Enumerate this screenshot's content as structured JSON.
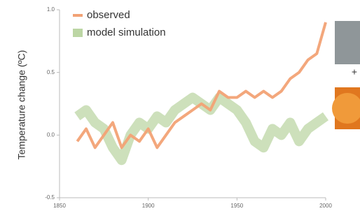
{
  "chart_data": {
    "type": "line",
    "ylabel": "Temperature change (ºC)",
    "x": [
      1860,
      1865,
      1870,
      1875,
      1880,
      1885,
      1890,
      1895,
      1900,
      1905,
      1910,
      1915,
      1920,
      1925,
      1930,
      1935,
      1940,
      1945,
      1950,
      1955,
      1960,
      1965,
      1970,
      1975,
      1980,
      1985,
      1990,
      1995,
      2000
    ],
    "series": [
      {
        "name": "observed",
        "color": "#f2a275",
        "values": [
          -0.05,
          0.05,
          -0.1,
          0.0,
          0.1,
          -0.1,
          0.0,
          -0.05,
          0.05,
          -0.1,
          0.0,
          0.1,
          0.15,
          0.2,
          0.25,
          0.2,
          0.35,
          0.3,
          0.3,
          0.35,
          0.3,
          0.35,
          0.3,
          0.35,
          0.45,
          0.5,
          0.6,
          0.65,
          0.9
        ]
      },
      {
        "name": "model simulation",
        "color": "#bcd6a4",
        "values": [
          0.15,
          0.2,
          0.1,
          0.05,
          -0.1,
          -0.2,
          0.0,
          0.1,
          0.05,
          0.15,
          0.1,
          0.2,
          0.25,
          0.3,
          0.25,
          0.2,
          0.3,
          0.25,
          0.2,
          0.1,
          -0.05,
          -0.1,
          0.05,
          0.0,
          0.1,
          -0.05,
          0.05,
          0.1,
          0.15
        ]
      }
    ],
    "xlim": [
      1850,
      2000
    ],
    "xticks": [
      1850,
      1900,
      1950,
      2000
    ],
    "ylim": [
      -0.5,
      1.0
    ],
    "yticks": [
      -0.5,
      {
        "value": 0,
        "label": "0.0"
      },
      0.5,
      {
        "value": 1.0,
        "label": "1.0"
      }
    ],
    "legend": "upper left"
  }
}
